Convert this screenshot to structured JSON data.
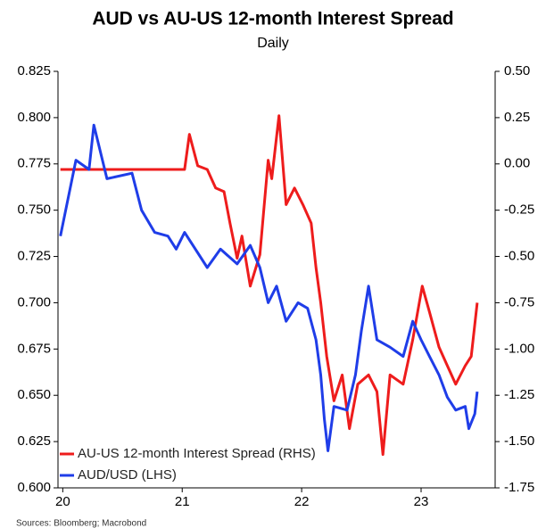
{
  "chart_data": {
    "type": "line",
    "title": "AUD vs AU-US 12-month Interest Spread",
    "subtitle": "Daily",
    "source": "Sources: Bloomberg; Macrobond",
    "xlim": [
      2019.96,
      2023.62
    ],
    "xticks": [
      {
        "value": 2020,
        "label": "20"
      },
      {
        "value": 2021,
        "label": "21"
      },
      {
        "value": 2022,
        "label": "22"
      },
      {
        "value": 2023,
        "label": "23"
      }
    ],
    "ylim": [
      0.6,
      0.825
    ],
    "yticks": [
      {
        "value": 0.6,
        "label": "0.600"
      },
      {
        "value": 0.625,
        "label": "0.625"
      },
      {
        "value": 0.65,
        "label": "0.650"
      },
      {
        "value": 0.675,
        "label": "0.675"
      },
      {
        "value": 0.7,
        "label": "0.700"
      },
      {
        "value": 0.725,
        "label": "0.725"
      },
      {
        "value": 0.75,
        "label": "0.750"
      },
      {
        "value": 0.775,
        "label": "0.775"
      },
      {
        "value": 0.8,
        "label": "0.800"
      },
      {
        "value": 0.825,
        "label": "0.825"
      }
    ],
    "y2lim": [
      -1.75,
      0.5
    ],
    "y2ticks": [
      {
        "value": -1.75,
        "label": "-1.75"
      },
      {
        "value": -1.5,
        "label": "-1.50"
      },
      {
        "value": -1.25,
        "label": "-1.25"
      },
      {
        "value": -1,
        "label": "-1.00"
      },
      {
        "value": -0.75,
        "label": "-0.75"
      },
      {
        "value": -0.5,
        "label": "-0.50"
      },
      {
        "value": -0.25,
        "label": "-0.25"
      },
      {
        "value": 0,
        "label": "0.00"
      },
      {
        "value": 0.25,
        "label": "0.25"
      },
      {
        "value": 0.5,
        "label": "0.50"
      }
    ],
    "legend": "lower left",
    "series": [
      {
        "name": "AU-US 12-month Interest Spread (RHS)",
        "color": "#ee1c1c",
        "axis": "y2",
        "x": [
          2019.98,
          2020.22,
          2020.58,
          2020.95,
          2021.02,
          2021.06,
          2021.13,
          2021.21,
          2021.28,
          2021.35,
          2021.4,
          2021.46,
          2021.5,
          2021.57,
          2021.65,
          2021.68,
          2021.72,
          2021.75,
          2021.81,
          2021.87,
          2021.94,
          2022.01,
          2022.08,
          2022.12,
          2022.16,
          2022.21,
          2022.27,
          2022.34,
          2022.4,
          2022.47,
          2022.56,
          2022.63,
          2022.68,
          2022.74,
          2022.85,
          2022.93,
          2023.01,
          2023.07,
          2023.15,
          2023.22,
          2023.29,
          2023.37,
          2023.42,
          2023.47
        ],
        "values": [
          -0.03,
          -0.03,
          -0.03,
          -0.03,
          -0.03,
          0.16,
          -0.01,
          -0.03,
          -0.13,
          -0.15,
          -0.32,
          -0.51,
          -0.39,
          -0.66,
          -0.49,
          -0.27,
          0.02,
          -0.08,
          0.26,
          -0.22,
          -0.13,
          -0.22,
          -0.32,
          -0.56,
          -0.75,
          -1.04,
          -1.28,
          -1.14,
          -1.43,
          -1.19,
          -1.14,
          -1.23,
          -1.57,
          -1.14,
          -1.19,
          -0.95,
          -0.66,
          -0.8,
          -0.99,
          -1.09,
          -1.19,
          -1.09,
          -1.04,
          -0.75
        ]
      },
      {
        "name": "AUD/USD (LHS)",
        "color": "#1f3de8",
        "axis": "y",
        "x": [
          2019.98,
          2020.11,
          2020.22,
          2020.26,
          2020.37,
          2020.58,
          2020.66,
          2020.77,
          2020.88,
          2020.95,
          2021.02,
          2021.21,
          2021.32,
          2021.46,
          2021.57,
          2021.65,
          2021.72,
          2021.79,
          2021.87,
          2021.97,
          2022.05,
          2022.12,
          2022.16,
          2022.19,
          2022.22,
          2022.27,
          2022.38,
          2022.45,
          2022.5,
          2022.56,
          2022.63,
          2022.74,
          2022.85,
          2022.93,
          2023.0,
          2023.07,
          2023.15,
          2023.22,
          2023.29,
          2023.37,
          2023.4,
          2023.45,
          2023.47
        ],
        "values": [
          0.736,
          0.777,
          0.772,
          0.796,
          0.767,
          0.77,
          0.75,
          0.738,
          0.736,
          0.729,
          0.738,
          0.719,
          0.729,
          0.721,
          0.731,
          0.719,
          0.7,
          0.709,
          0.69,
          0.7,
          0.697,
          0.68,
          0.661,
          0.637,
          0.62,
          0.644,
          0.642,
          0.661,
          0.685,
          0.709,
          0.68,
          0.676,
          0.671,
          0.69,
          0.68,
          0.671,
          0.661,
          0.649,
          0.642,
          0.644,
          0.632,
          0.64,
          0.652
        ]
      }
    ]
  }
}
